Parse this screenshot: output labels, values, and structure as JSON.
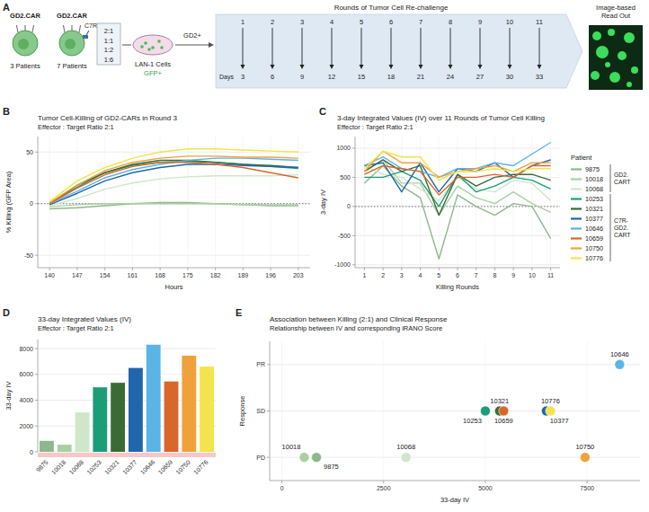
{
  "panel_a": {
    "panel": "A",
    "cars": [
      {
        "label": "GD2.CAR",
        "count": "3 Patients"
      },
      {
        "label": "GD2.CAR",
        "receptor": "C7R",
        "count": "7 Patients"
      }
    ],
    "ratios": [
      "2:1",
      "1:1",
      "1:2",
      "1:6"
    ],
    "cell_line": "LAN-1 Cells",
    "reporter": "GFP+",
    "antigen": "GD2+",
    "rounds_title": "Rounds of Tumor Cell Re-challenge",
    "rounds": [
      1,
      2,
      3,
      4,
      5,
      6,
      7,
      8,
      9,
      10,
      11
    ],
    "days_label": "Days",
    "days": [
      3,
      6,
      9,
      12,
      15,
      18,
      21,
      24,
      27,
      30,
      33
    ],
    "readout": "Image-based Read Out"
  },
  "chart_data": [
    {
      "panel": "B",
      "type": "line",
      "title": "Tumor Cell-Killing of GD2-CARs in Round 3",
      "subtitle": "Effector : Target Ratio 2:1",
      "x_label": "Hours",
      "y_label": "% Killing (GFP Area)",
      "x": [
        140,
        147,
        154,
        161,
        168,
        175,
        182,
        189,
        196,
        203
      ],
      "xlim": [
        137,
        206
      ],
      "xticks": [
        140,
        147,
        154,
        161,
        168,
        175,
        182,
        189,
        196,
        203
      ],
      "ylim": [
        -62,
        65
      ],
      "yticks": [
        -50,
        0,
        50
      ],
      "grid": true,
      "reference_line": 0,
      "series": [
        {
          "color": "#8db88a",
          "values": [
            -5,
            -4,
            -2,
            0,
            1,
            1,
            0,
            -1,
            -2,
            -2
          ]
        },
        {
          "color": "#a9d0a1",
          "values": [
            -3,
            -1,
            0,
            0,
            0,
            0,
            0,
            -1,
            -1,
            -1
          ]
        },
        {
          "color": "#cfe6c8",
          "values": [
            -2,
            5,
            14,
            20,
            24,
            26,
            27,
            27,
            27,
            28
          ]
        },
        {
          "color": "#1b9e77",
          "values": [
            1,
            16,
            30,
            37,
            40,
            41,
            40,
            38,
            36,
            34
          ]
        },
        {
          "color": "#3b6b35",
          "values": [
            0,
            18,
            30,
            38,
            42,
            42,
            40,
            38,
            37,
            35
          ]
        },
        {
          "color": "#2166ac",
          "values": [
            -1,
            10,
            22,
            30,
            35,
            38,
            38,
            37,
            36,
            35
          ]
        },
        {
          "color": "#5ab4e5",
          "values": [
            0,
            12,
            25,
            33,
            38,
            42,
            44,
            44,
            43,
            42
          ]
        },
        {
          "color": "#d9662a",
          "values": [
            0,
            15,
            28,
            36,
            40,
            40,
            38,
            35,
            30,
            25
          ]
        },
        {
          "color": "#f0a13a",
          "values": [
            1,
            18,
            32,
            40,
            44,
            46,
            46,
            45,
            45,
            44
          ]
        },
        {
          "color": "#f2e44a",
          "values": [
            2,
            22,
            35,
            44,
            50,
            53,
            53,
            52,
            51,
            50
          ]
        }
      ]
    },
    {
      "panel": "C",
      "type": "line",
      "title": "3-day Integrated Values (IV) over 11 Rounds of Tumor Cell Killing",
      "subtitle": "Effector : Target Ratio 2:1",
      "x_label": "Killing Rounds",
      "y_label": "3-day IV",
      "x": [
        1,
        2,
        3,
        4,
        5,
        6,
        7,
        8,
        9,
        10,
        11
      ],
      "xlim": [
        0.5,
        11.5
      ],
      "xticks": [
        1,
        2,
        3,
        4,
        5,
        6,
        7,
        8,
        9,
        10,
        11
      ],
      "ylim": [
        -1050,
        1200
      ],
      "yticks": [
        -1000,
        -500,
        0,
        500,
        1000
      ],
      "grid": true,
      "reference_line": 0,
      "legend": "right",
      "legend_title": "Patient",
      "series": [
        {
          "name": "9875",
          "group": "GD2.CART",
          "color": "#8db88a",
          "values": [
            400,
            700,
            350,
            150,
            -900,
            200,
            0,
            -150,
            50,
            0,
            -550
          ]
        },
        {
          "name": "10018",
          "group": "GD2.CART",
          "color": "#a9d0a1",
          "values": [
            600,
            800,
            400,
            400,
            -150,
            350,
            150,
            50,
            250,
            50,
            -100
          ]
        },
        {
          "name": "10068",
          "group": "GD2.CART",
          "color": "#cfe6c8",
          "values": [
            700,
            550,
            500,
            300,
            100,
            500,
            300,
            250,
            450,
            400,
            100
          ]
        },
        {
          "name": "10253",
          "group": "C7R-GD2.CART",
          "color": "#1b9e77",
          "values": [
            500,
            500,
            600,
            450,
            0,
            550,
            250,
            350,
            500,
            450,
            300
          ]
        },
        {
          "name": "10321",
          "group": "C7R-GD2.CART",
          "color": "#3b6b35",
          "values": [
            600,
            800,
            600,
            700,
            -150,
            550,
            350,
            500,
            550,
            550,
            450
          ]
        },
        {
          "name": "10377",
          "group": "C7R-GD2.CART",
          "color": "#2166ac",
          "values": [
            700,
            750,
            250,
            750,
            250,
            650,
            600,
            750,
            500,
            700,
            800
          ]
        },
        {
          "name": "10646",
          "group": "C7R-GD2.CART",
          "color": "#5ab4e5",
          "values": [
            700,
            850,
            650,
            600,
            500,
            650,
            650,
            750,
            700,
            900,
            1100
          ]
        },
        {
          "name": "10659",
          "group": "C7R-GD2.CART",
          "color": "#d9662a",
          "values": [
            550,
            700,
            650,
            600,
            200,
            500,
            500,
            550,
            500,
            700,
            700
          ]
        },
        {
          "name": "10750",
          "group": "C7R-GD2.CART",
          "color": "#f0a13a",
          "values": [
            600,
            950,
            750,
            750,
            500,
            600,
            650,
            700,
            600,
            750,
            750
          ]
        },
        {
          "name": "10776",
          "group": "C7R-GD2.CART",
          "color": "#f2e44a",
          "values": [
            650,
            950,
            850,
            850,
            450,
            600,
            600,
            650,
            600,
            650,
            650
          ]
        }
      ]
    },
    {
      "panel": "D",
      "type": "bar",
      "title": "33-day Integrated Values (IV)",
      "subtitle": "Effector : Target Ratio 2:1",
      "y_label": "33-day IV",
      "categories": [
        "9875",
        "10018",
        "10068",
        "10253",
        "10321",
        "10377",
        "10646",
        "10659",
        "10750",
        "10776"
      ],
      "values": [
        850,
        550,
        3050,
        5000,
        5350,
        6500,
        8300,
        5450,
        7450,
        6600
      ],
      "colors": [
        "#8db88a",
        "#a9d0a1",
        "#cfe6c8",
        "#1b9e77",
        "#3b6b35",
        "#2166ac",
        "#5ab4e5",
        "#d9662a",
        "#f0a13a",
        "#f2e44a"
      ],
      "ylim": [
        0,
        8700
      ],
      "yticks": [
        0,
        2000,
        4000,
        6000,
        8000
      ],
      "grid": true
    },
    {
      "panel": "E",
      "type": "scatter",
      "title": "Association between Killing (2:1) and Clinical Response",
      "subtitle": "Relationship between IV and corresponding iRANO Score",
      "x_label": "33-day IV",
      "y_label": "Response",
      "x": [
        850,
        550,
        3050,
        5000,
        5350,
        6500,
        8300,
        5450,
        7450,
        6600
      ],
      "values": [
        1,
        1,
        1,
        2,
        2,
        2,
        3,
        2,
        1,
        2
      ],
      "labels": [
        "9875",
        "10018",
        "10068",
        "10253",
        "10321",
        "10377",
        "10646",
        "10659",
        "10750",
        "10776"
      ],
      "colors": [
        "#8db88a",
        "#a9d0a1",
        "#cfe6c8",
        "#1b9e77",
        "#3b6b35",
        "#2166ac",
        "#5ab4e5",
        "#d9662a",
        "#f0a13a",
        "#f2e44a"
      ],
      "xlim": [
        -300,
        8800
      ],
      "xticks": [
        0,
        2500,
        5000,
        7500
      ],
      "ylim": [
        0.5,
        3.5
      ],
      "yticks": [
        {
          "value": 1,
          "label": "PD"
        },
        {
          "value": 2,
          "label": "SD"
        },
        {
          "value": 3,
          "label": "PR"
        }
      ],
      "grid": true
    }
  ]
}
